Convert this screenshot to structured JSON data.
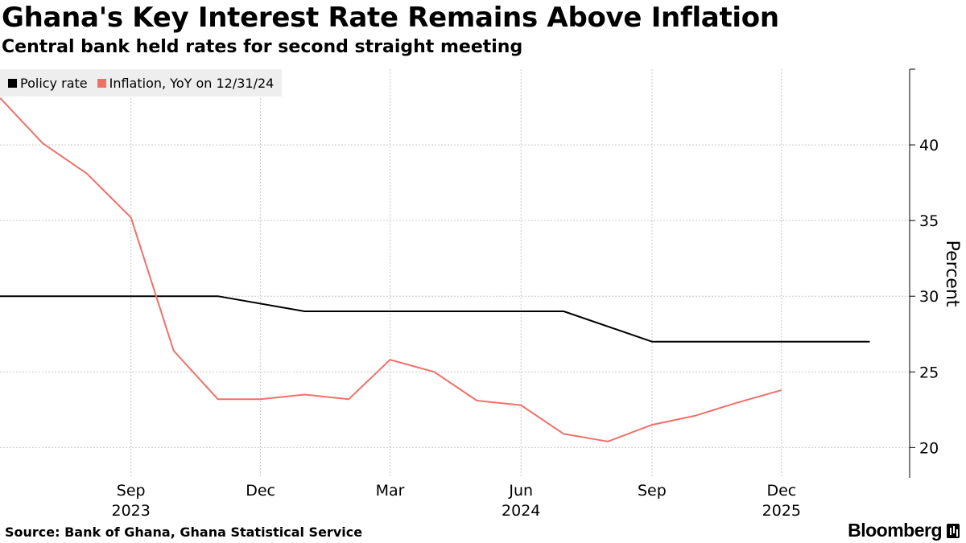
{
  "header": {
    "title": "Ghana's Key Interest Rate Remains Above Inflation",
    "subtitle": "Central bank held rates for second straight meeting"
  },
  "legend": {
    "policy_label": "Policy rate",
    "inflation_label": "Inflation, YoY on 12/31/24"
  },
  "footer": {
    "source": "Source: Bank of Ghana, Ghana Statistical Service",
    "brand": "Bloomberg"
  },
  "chart_data": {
    "type": "line",
    "title": "Ghana's Key Interest Rate Remains Above Inflation",
    "subtitle": "Central bank held rates for second straight meeting",
    "xlabel": "",
    "ylabel": "Percent",
    "ylim": [
      18,
      45
    ],
    "yticks": [
      20,
      25,
      30,
      35,
      40
    ],
    "xlim": [
      "2023-06-01",
      "2025-03-01"
    ],
    "xticks": [
      {
        "date": "2023-09-01",
        "label": "Sep",
        "year": "2023"
      },
      {
        "date": "2023-12-01",
        "label": "Dec"
      },
      {
        "date": "2024-03-01",
        "label": "Mar"
      },
      {
        "date": "2024-06-01",
        "label": "Jun",
        "year": "2024"
      },
      {
        "date": "2024-09-01",
        "label": "Sep"
      },
      {
        "date": "2024-12-01",
        "label": "Dec",
        "year": "2025"
      }
    ],
    "grid": true,
    "legend_position": "top-left",
    "series": [
      {
        "name": "Policy rate",
        "color": "#000000",
        "points": [
          [
            "2023-06-01",
            30
          ],
          [
            "2023-11-01",
            30
          ],
          [
            "2024-01-01",
            29
          ],
          [
            "2024-07-01",
            29
          ],
          [
            "2024-09-01",
            27
          ],
          [
            "2025-02-01",
            27
          ]
        ]
      },
      {
        "name": "Inflation, YoY on 12/31/24",
        "color": "#f07068",
        "points": [
          [
            "2023-06-01",
            43.1
          ],
          [
            "2023-07-01",
            40.1
          ],
          [
            "2023-08-01",
            38.1
          ],
          [
            "2023-09-01",
            35.2
          ],
          [
            "2023-10-01",
            26.4
          ],
          [
            "2023-11-01",
            23.2
          ],
          [
            "2023-12-01",
            23.2
          ],
          [
            "2024-01-01",
            23.5
          ],
          [
            "2024-02-01",
            23.2
          ],
          [
            "2024-03-01",
            25.8
          ],
          [
            "2024-04-01",
            25.0
          ],
          [
            "2024-05-01",
            23.1
          ],
          [
            "2024-06-01",
            22.8
          ],
          [
            "2024-07-01",
            20.9
          ],
          [
            "2024-08-01",
            20.4
          ],
          [
            "2024-09-01",
            21.5
          ],
          [
            "2024-10-01",
            22.1
          ],
          [
            "2024-11-01",
            23.0
          ],
          [
            "2024-12-01",
            23.8
          ]
        ]
      }
    ]
  }
}
